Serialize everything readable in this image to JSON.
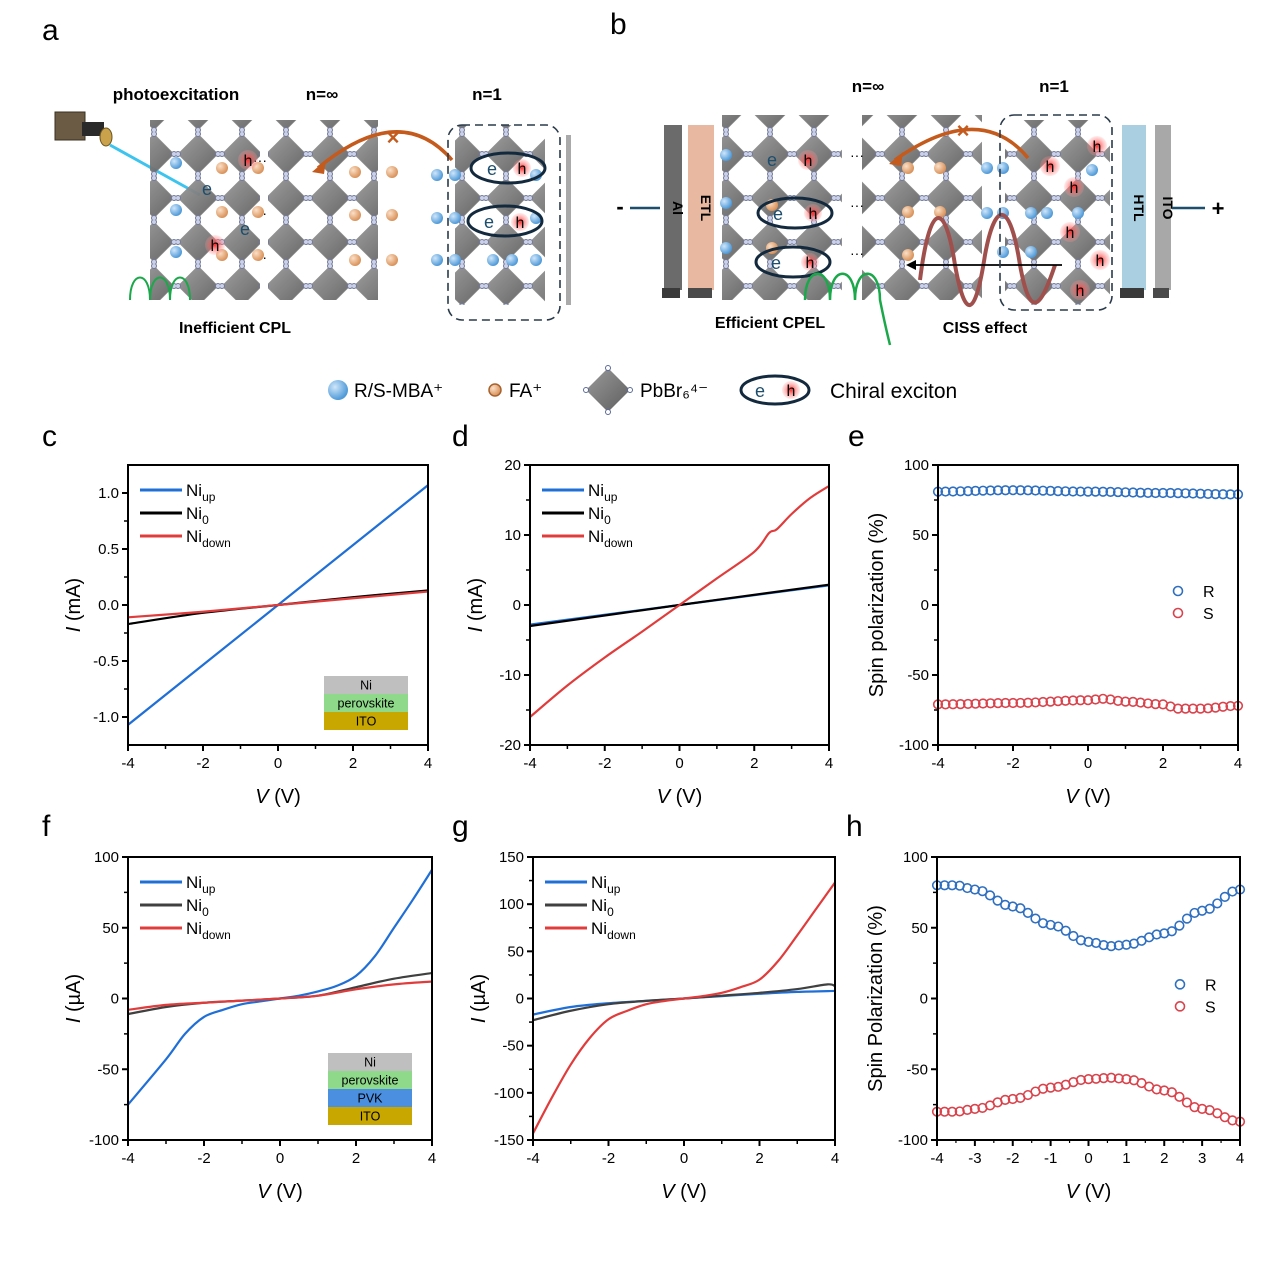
{
  "panels": {
    "a": "a",
    "b": "b",
    "c": "c",
    "d": "d",
    "e": "e",
    "f": "f",
    "g": "g",
    "h": "h"
  },
  "schematic_a": {
    "photoexcitation": "photoexcitation",
    "n_inf": "n=∞",
    "n_1": "n=1",
    "caption": "Inefficient CPL",
    "electron": "e",
    "hole": "h"
  },
  "schematic_b": {
    "n_inf": "n=∞",
    "n_1": "n=1",
    "caption_left": "Efficient CPEL",
    "caption_right": "CISS effect",
    "layer_al": "Al",
    "layer_etl": "ETL",
    "layer_htl": "HTL",
    "layer_ito": "ITO",
    "minus": "-",
    "plus": "+",
    "electron": "e",
    "hole": "h"
  },
  "legend_schematic": {
    "mba": "R/S-MBA⁺",
    "fa": "FA⁺",
    "pbbr": "PbBr₆⁴⁻",
    "exciton": "Chiral exciton"
  },
  "colors": {
    "blue": "#1f6fd6",
    "black": "#000000",
    "gray": "#404040",
    "red": "#e03c3c",
    "R_marker": "#2f6fc0",
    "S_marker": "#d9434c",
    "ni_layer": "#bfbfbf",
    "perovskite_layer": "#8ed98a",
    "pvk_layer": "#4a8fe0",
    "ito_layer": "#c8a800"
  },
  "chart_data": [
    {
      "id": "c",
      "type": "line",
      "xlabel": "V (V)",
      "ylabel": "I (mA)",
      "xlim": [
        -4,
        4
      ],
      "ylim": [
        -1.25,
        1.25
      ],
      "xticks": [
        -4,
        -2,
        0,
        2,
        4
      ],
      "yticks": [
        -1.0,
        -0.5,
        0.0,
        0.5,
        1.0
      ],
      "ytick_labels": [
        "-1.0",
        "-0.5",
        "0.0",
        "0.5",
        "1.0"
      ],
      "legend_position": "top-left",
      "inset_stack": [
        "Ni",
        "perovskite",
        "ITO"
      ],
      "series": [
        {
          "name": "Ni",
          "sub": "up",
          "color": "blue",
          "x": [
            -4,
            0,
            4
          ],
          "y": [
            -1.07,
            0.0,
            1.07
          ]
        },
        {
          "name": "Ni",
          "sub": "0",
          "color": "black",
          "x": [
            -4,
            -2,
            0,
            2,
            4
          ],
          "y": [
            -0.17,
            -0.07,
            0.0,
            0.07,
            0.13
          ]
        },
        {
          "name": "Ni",
          "sub": "down",
          "color": "red",
          "x": [
            -4,
            -2,
            0,
            2,
            4
          ],
          "y": [
            -0.11,
            -0.06,
            0.0,
            0.06,
            0.12
          ]
        }
      ]
    },
    {
      "id": "d",
      "type": "line",
      "xlabel": "V (V)",
      "ylabel": "I (mA)",
      "xlim": [
        -4,
        4
      ],
      "ylim": [
        -20,
        20
      ],
      "xticks": [
        -4,
        -2,
        0,
        2,
        4
      ],
      "yticks": [
        -20,
        -10,
        0,
        10,
        20
      ],
      "ytick_labels": [
        "-20",
        "-10",
        "0",
        "10",
        "20"
      ],
      "legend_position": "top-left",
      "series": [
        {
          "name": "Ni",
          "sub": "up",
          "color": "blue",
          "x": [
            -4,
            0,
            4
          ],
          "y": [
            -2.8,
            0.0,
            2.8
          ]
        },
        {
          "name": "Ni",
          "sub": "0",
          "color": "black",
          "x": [
            -4,
            0,
            4
          ],
          "y": [
            -3.0,
            0.0,
            2.9
          ]
        },
        {
          "name": "Ni",
          "sub": "down",
          "color": "red",
          "x": [
            -4,
            -3,
            -2,
            -1,
            0,
            1,
            2,
            2.4,
            2.6,
            3,
            3.5,
            4
          ],
          "y": [
            -16.0,
            -11.5,
            -7.5,
            -3.8,
            0.0,
            3.8,
            7.6,
            10.3,
            10.8,
            13.0,
            15.3,
            17.0
          ]
        }
      ]
    },
    {
      "id": "e",
      "type": "scatter",
      "xlabel": "V (V)",
      "ylabel": "Spin polarization (%)",
      "xlim": [
        -4,
        4
      ],
      "ylim": [
        -100,
        100
      ],
      "xticks": [
        -4,
        -2,
        0,
        2,
        4
      ],
      "yticks": [
        -100,
        -50,
        0,
        50,
        100
      ],
      "ytick_labels": [
        "-100",
        "-50",
        "0",
        "50",
        "100"
      ],
      "legend_position": "center-right",
      "series": [
        {
          "name": "R",
          "color": "R_marker",
          "x_range": [
            -4,
            4
          ],
          "n": 41,
          "anchors_x": [
            -4,
            -2,
            0,
            2,
            4
          ],
          "anchors_y": [
            81,
            82,
            81,
            80,
            79
          ]
        },
        {
          "name": "S",
          "color": "S_marker",
          "x_range": [
            -4,
            4
          ],
          "n": 41,
          "anchors_x": [
            -4,
            -2,
            0,
            0.4,
            1,
            2,
            2.4,
            3,
            4
          ],
          "anchors_y": [
            -71,
            -70,
            -68,
            -67,
            -69,
            -71,
            -74,
            -74,
            -72
          ]
        }
      ]
    },
    {
      "id": "f",
      "type": "line",
      "xlabel": "V (V)",
      "ylabel": "I (µA)",
      "xlim": [
        -4,
        4
      ],
      "ylim": [
        -100,
        100
      ],
      "xticks": [
        -4,
        -2,
        0,
        2,
        4
      ],
      "yticks": [
        -100,
        -50,
        0,
        50,
        100
      ],
      "ytick_labels": [
        "-100",
        "-50",
        "0",
        "50",
        "100"
      ],
      "legend_position": "top-left",
      "inset_stack": [
        "Ni",
        "perovskite",
        "PVK",
        "ITO"
      ],
      "series": [
        {
          "name": "Ni",
          "sub": "up",
          "color": "blue",
          "x": [
            -4,
            -3,
            -2.5,
            -2,
            -1.5,
            -1,
            -0.5,
            0,
            0.5,
            1,
            1.5,
            2,
            2.5,
            3,
            3.5,
            4
          ],
          "y": [
            -75,
            -43,
            -25,
            -13,
            -8,
            -4,
            -2,
            0,
            2,
            5,
            9,
            16,
            30,
            50,
            70,
            91
          ]
        },
        {
          "name": "Ni",
          "sub": "0",
          "color": "gray",
          "x": [
            -4,
            -3,
            -2,
            -1,
            0,
            1,
            2,
            3,
            4
          ],
          "y": [
            -11,
            -6,
            -3,
            -1.5,
            0,
            2,
            8,
            14,
            18
          ]
        },
        {
          "name": "Ni",
          "sub": "down",
          "color": "red",
          "x": [
            -4,
            -3,
            -2,
            -1,
            0,
            1,
            2,
            3,
            4
          ],
          "y": [
            -8,
            -4.5,
            -3,
            -1.5,
            0,
            2,
            6.5,
            10,
            12
          ]
        }
      ]
    },
    {
      "id": "g",
      "type": "line",
      "xlabel": "V (V)",
      "ylabel": "I (µA)",
      "xlim": [
        -4,
        4
      ],
      "ylim": [
        -150,
        150
      ],
      "xticks": [
        -4,
        -2,
        0,
        2,
        4
      ],
      "yticks": [
        -150,
        -100,
        -50,
        0,
        50,
        100,
        150
      ],
      "ytick_labels": [
        "-150",
        "-100",
        "-50",
        "0",
        "50",
        "100",
        "150"
      ],
      "legend_position": "top-left",
      "series": [
        {
          "name": "Ni",
          "sub": "up",
          "color": "blue",
          "x": [
            -4,
            -3,
            -2,
            -1,
            0,
            1,
            2,
            3,
            4
          ],
          "y": [
            -17,
            -9,
            -5,
            -2.5,
            0,
            2.5,
            5,
            7,
            8
          ]
        },
        {
          "name": "Ni",
          "sub": "0",
          "color": "gray",
          "x": [
            -4,
            -3,
            -2,
            -1,
            0,
            1,
            2,
            3,
            3.8,
            4
          ],
          "y": [
            -23,
            -13,
            -6,
            -2.5,
            0,
            3,
            6,
            10,
            15,
            13
          ]
        },
        {
          "name": "Ni",
          "sub": "down",
          "color": "red",
          "x": [
            -4,
            -3.5,
            -3,
            -2.5,
            -2,
            -1.5,
            -1,
            -0.5,
            0,
            0.5,
            1,
            1.5,
            2,
            2.5,
            3,
            3.5,
            4
          ],
          "y": [
            -143,
            -105,
            -70,
            -42,
            -22,
            -13,
            -6,
            -2.5,
            0,
            2.5,
            6,
            12,
            20,
            40,
            67,
            95,
            123
          ]
        }
      ]
    },
    {
      "id": "h",
      "type": "scatter",
      "xlabel": "V (V)",
      "ylabel": "Spin Polarization (%)",
      "xlim": [
        -4,
        4
      ],
      "ylim": [
        -100,
        100
      ],
      "xticks": [
        -4,
        -3,
        -2,
        -1,
        0,
        1,
        2,
        3,
        4
      ],
      "yticks": [
        -100,
        -50,
        0,
        50,
        100
      ],
      "ytick_labels": [
        "-100",
        "-50",
        "0",
        "50",
        "100"
      ],
      "legend_position": "center-right",
      "series": [
        {
          "name": "R",
          "color": "R_marker",
          "x_range": [
            -4,
            4
          ],
          "n": 41,
          "anchors_x": [
            -4,
            -3.5,
            -3,
            -2,
            -1,
            0,
            0.6,
            1,
            2,
            3,
            4
          ],
          "anchors_y": [
            80,
            80,
            77,
            65,
            52,
            40,
            37,
            38,
            46,
            62,
            77
          ]
        },
        {
          "name": "S",
          "color": "S_marker",
          "x_range": [
            -4,
            4
          ],
          "n": 41,
          "anchors_x": [
            -4,
            -3.5,
            -3,
            -2,
            -1,
            0,
            0.6,
            1,
            2,
            3,
            4
          ],
          "anchors_y": [
            -80,
            -80,
            -78,
            -71,
            -63,
            -57,
            -56,
            -57,
            -65,
            -78,
            -87
          ]
        }
      ]
    }
  ]
}
